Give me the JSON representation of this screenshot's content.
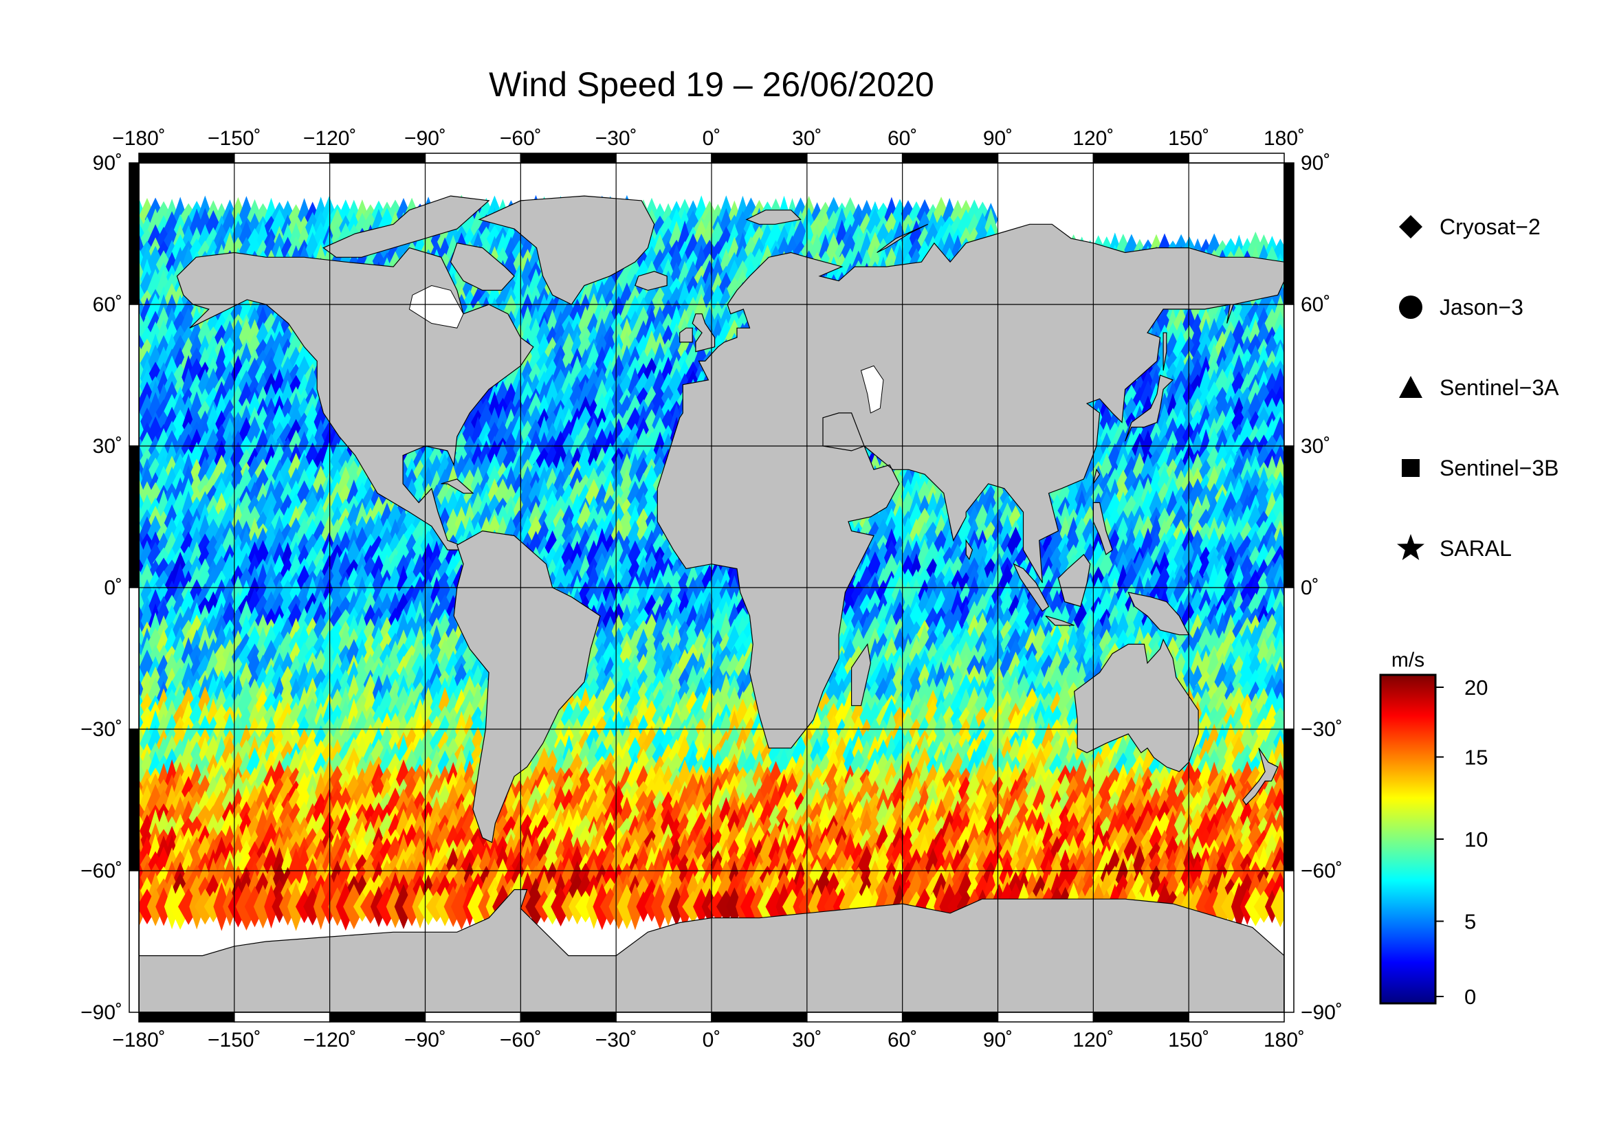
{
  "title": "Wind Speed 19 – 26/06/2020",
  "axes": {
    "lon_ticks": [
      -180,
      -150,
      -120,
      -90,
      -60,
      -30,
      0,
      30,
      60,
      90,
      120,
      150,
      180
    ],
    "lat_ticks": [
      90,
      60,
      30,
      0,
      -30,
      -60,
      -90
    ],
    "lon_labels": [
      "−180˚",
      "−150˚",
      "−120˚",
      "−90˚",
      "−60˚",
      "−30˚",
      "0˚",
      "30˚",
      "60˚",
      "90˚",
      "120˚",
      "150˚",
      "180˚"
    ],
    "lat_labels": [
      "90˚",
      "60˚",
      "30˚",
      "0˚",
      "−30˚",
      "−60˚",
      "−90˚"
    ],
    "xlim": [
      -180,
      180
    ],
    "ylim": [
      -90,
      90
    ],
    "grid": true
  },
  "legend": {
    "placement": "right",
    "items": [
      {
        "label": "Cryosat−2",
        "symbol": "diamond"
      },
      {
        "label": "Jason−3",
        "symbol": "circle"
      },
      {
        "label": "Sentinel−3A",
        "symbol": "triangle"
      },
      {
        "label": "Sentinel−3B",
        "symbol": "square"
      },
      {
        "label": "SARAL",
        "symbol": "star"
      }
    ]
  },
  "colorbar": {
    "unit": "m/s",
    "range": [
      0,
      20
    ],
    "ticks": [
      0,
      5,
      10,
      15,
      20
    ],
    "tick_labels": [
      "0",
      "5",
      "10",
      "15",
      "20"
    ],
    "colormap": [
      "#00007f",
      "#0000ff",
      "#0080ff",
      "#00ffff",
      "#80ff80",
      "#ffff00",
      "#ff8000",
      "#ff0000",
      "#7f0000"
    ]
  },
  "colors": {
    "land": "#c0c0c0",
    "ice": "#ffffff",
    "grid": "#000000"
  }
}
